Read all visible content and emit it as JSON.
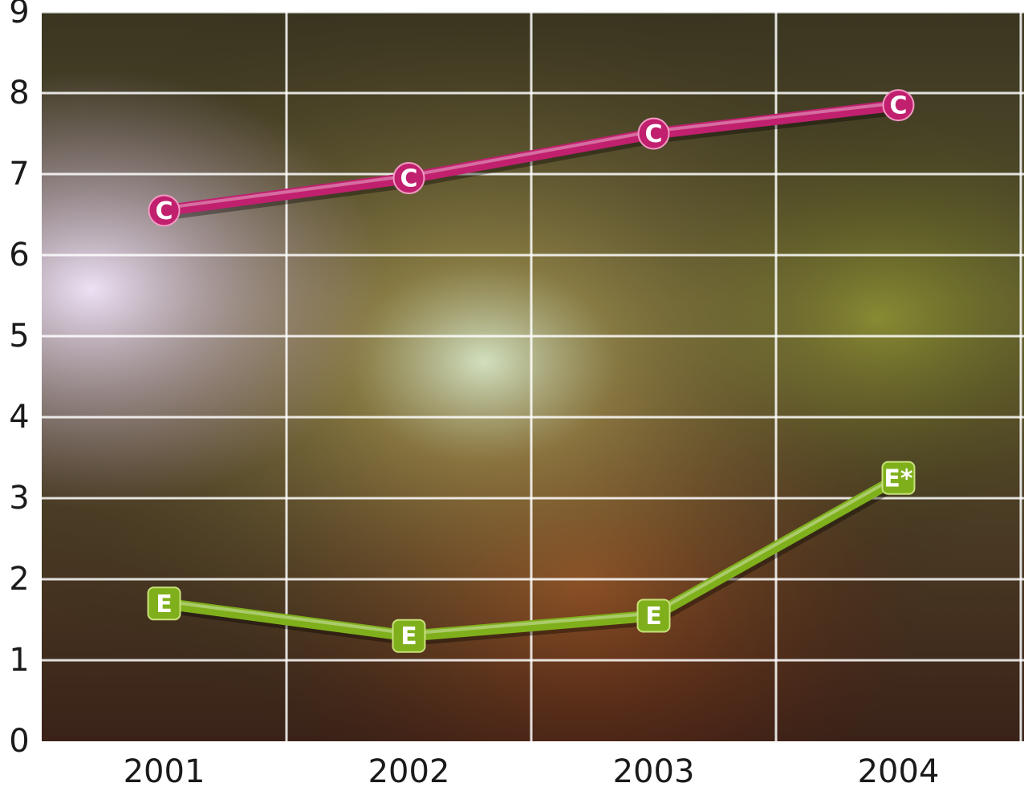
{
  "chart_data": {
    "type": "line",
    "categories": [
      "2001",
      "2002",
      "2003",
      "2004"
    ],
    "y_ticks": [
      "0",
      "1",
      "2",
      "3",
      "4",
      "5",
      "6",
      "7",
      "8",
      "9"
    ],
    "ylim": [
      0,
      9
    ],
    "grid": true,
    "background": "photo of a concert crowd with stage lights",
    "series": [
      {
        "marker": "C",
        "color": "#c0206e",
        "values": [
          6.55,
          6.95,
          7.5,
          7.85
        ],
        "point_labels": [
          "C",
          "C",
          "C",
          "C"
        ]
      },
      {
        "marker": "E",
        "color": "#7fb01c",
        "values": [
          1.7,
          1.3,
          1.55,
          3.25
        ],
        "point_labels": [
          "E",
          "E",
          "E",
          "E*"
        ]
      }
    ]
  }
}
